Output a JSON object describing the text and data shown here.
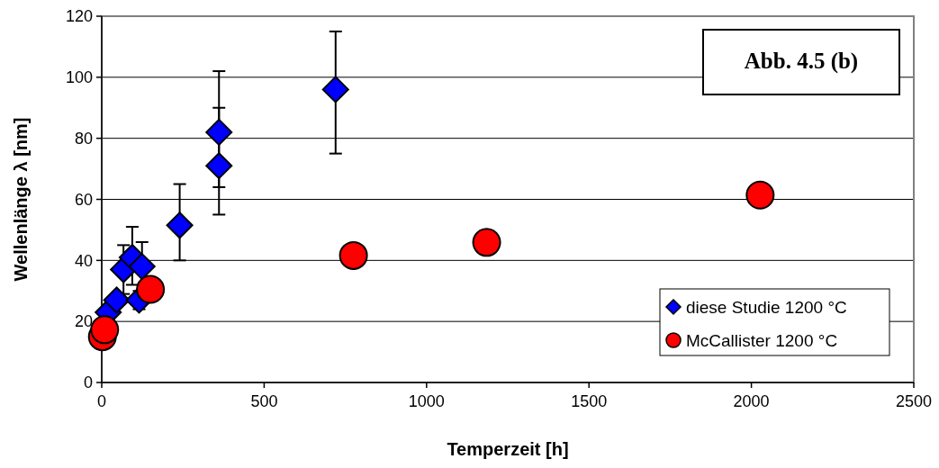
{
  "chart_data": {
    "type": "scatter",
    "xlabel": "Temperzeit [h]",
    "ylabel": "Wellenlänge λ [nm]",
    "annotations": [
      "Abb. 4.5 (b)"
    ],
    "xlim": [
      0,
      2500
    ],
    "xticks": [
      0,
      500,
      1000,
      1500,
      2000,
      2500
    ],
    "ylim": [
      0,
      120
    ],
    "yticks": [
      0,
      20,
      40,
      60,
      80,
      100,
      120
    ],
    "grid": "y",
    "legend": "bottom right",
    "series": [
      {
        "name": "diese Studie 1200 °C",
        "color": "#0000ff",
        "marker": "diamond",
        "x": [
          20,
          46,
          67,
          94,
          115,
          124,
          240,
          361,
          361,
          720
        ],
        "values": [
          23,
          27,
          37,
          41,
          27,
          38,
          51.5,
          71,
          82,
          96
        ],
        "errors": [
          null,
          null,
          [
            29,
            45
          ],
          [
            32,
            51
          ],
          [
            24,
            30
          ],
          [
            38,
            46
          ],
          [
            40,
            65
          ],
          [
            55,
            90
          ],
          [
            64,
            102
          ],
          [
            75,
            115
          ]
        ]
      },
      {
        "name": "McCallister 1200 °C",
        "color": "#ff0000",
        "marker": "circle",
        "x": [
          2,
          9,
          150,
          775,
          1185,
          2027
        ],
        "values": [
          15,
          17.3,
          30.5,
          41.6,
          45.9,
          61.4
        ]
      }
    ]
  }
}
